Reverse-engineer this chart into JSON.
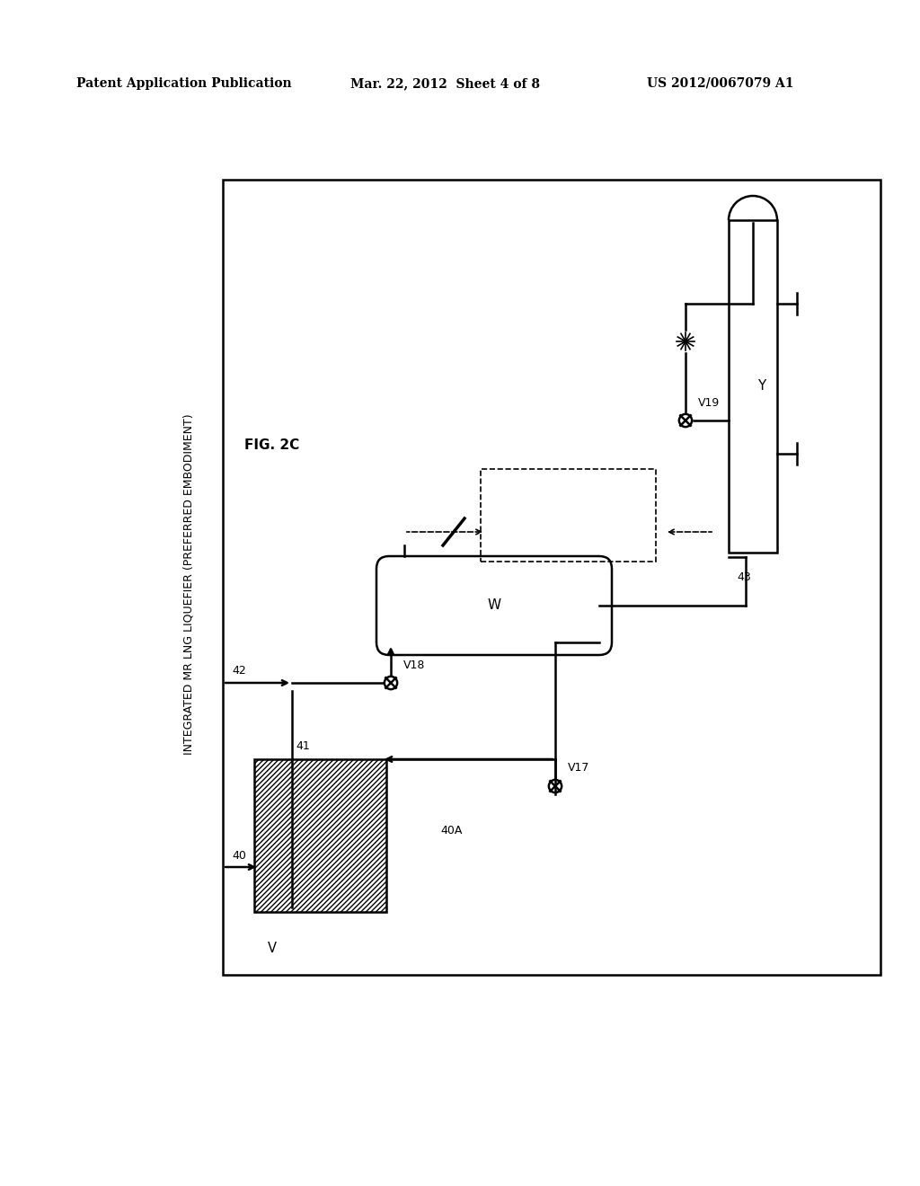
{
  "header_left": "Patent Application Publication",
  "header_mid": "Mar. 22, 2012  Sheet 4 of 8",
  "header_right": "US 2012/0067079 A1",
  "fig_label": "FIG. 2C",
  "fig_subtitle": "INTEGRATED MR LNG LIQUEFIER (PREFERRED EMBODIMENT)",
  "bg": "#ffffff",
  "lc": "#000000",
  "label_V": "V",
  "label_W": "W",
  "label_Y": "Y",
  "label_40": "40",
  "label_40A": "40A",
  "label_41": "41",
  "label_42": "42",
  "label_43": "43",
  "label_V17": "V17",
  "label_V18": "V18",
  "label_V19": "V19"
}
